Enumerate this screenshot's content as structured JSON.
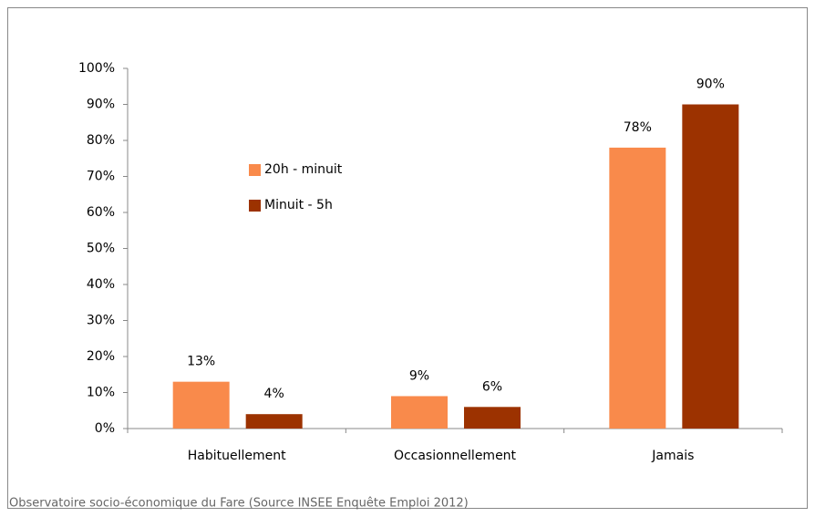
{
  "chart_data": {
    "type": "bar",
    "categories": [
      "Habituellement",
      "Occasionnellement",
      "Jamais"
    ],
    "series": [
      {
        "name": "20h - minuit",
        "color": "#f98a4b",
        "values": [
          13,
          9,
          78
        ],
        "value_labels": [
          "13%",
          "9%",
          "78%"
        ]
      },
      {
        "name": "Minuit - 5h",
        "color": "#9c3200",
        "values": [
          4,
          6,
          90
        ],
        "value_labels": [
          "4%",
          "6%",
          "90%"
        ]
      }
    ],
    "ylim": [
      0,
      100
    ],
    "yticks": [
      {
        "value": 0,
        "label": "0%"
      },
      {
        "value": 10,
        "label": "10%"
      },
      {
        "value": 20,
        "label": "20%"
      },
      {
        "value": 30,
        "label": "30%"
      },
      {
        "value": 40,
        "label": "40%"
      },
      {
        "value": 50,
        "label": "50%"
      },
      {
        "value": 60,
        "label": "60%"
      },
      {
        "value": 70,
        "label": "70%"
      },
      {
        "value": 80,
        "label": "80%"
      },
      {
        "value": 90,
        "label": "90%"
      },
      {
        "value": 100,
        "label": "100%"
      }
    ],
    "grid": false,
    "legend": "upper-left",
    "source": "Observatoire socio-économique du Fare (Source INSEE Enquête Emploi 2012)"
  }
}
